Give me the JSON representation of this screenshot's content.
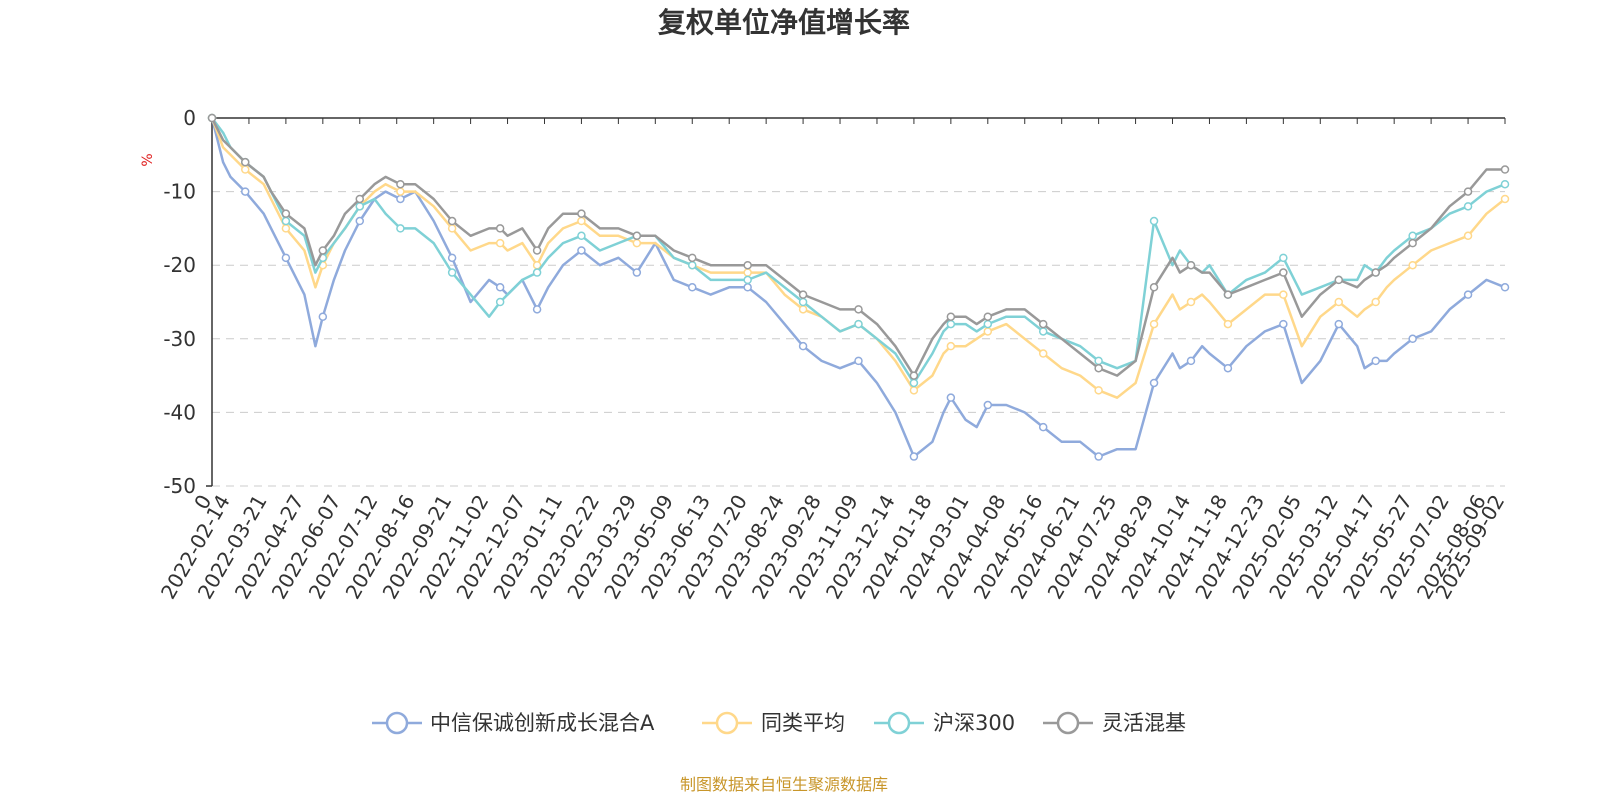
{
  "title": "复权单位净值增长率",
  "source": "制图数据来自恒生聚源数据库",
  "chart_data": {
    "type": "line",
    "title": "复权单位净值增长率",
    "ylabel": "%",
    "ylim": [
      -50,
      0
    ],
    "yticks": [
      0,
      -10,
      -20,
      -30,
      -40,
      -50
    ],
    "grid": true,
    "legend_position": "bottom",
    "x_labels": [
      "0",
      "2022-02-14",
      "2022-03-21",
      "2022-04-27",
      "2022-06-07",
      "2022-07-12",
      "2022-08-16",
      "2022-09-21",
      "2022-11-02",
      "2022-12-07",
      "2023-01-11",
      "2023-02-22",
      "2023-03-29",
      "2023-05-09",
      "2023-06-13",
      "2023-07-20",
      "2023-08-24",
      "2023-09-28",
      "2023-11-09",
      "2023-12-14",
      "2024-01-18",
      "2024-03-01",
      "2024-04-08",
      "2024-05-16",
      "2024-06-21",
      "2024-07-25",
      "2024-08-29",
      "2024-10-14",
      "2024-11-18",
      "2024-12-23",
      "2025-02-05",
      "2025-03-12",
      "2025-04-17",
      "2025-05-27",
      "2025-07-02",
      "2025-08-06",
      "2025-09-02"
    ],
    "x_positions": [
      0,
      0.5,
      1.5,
      2.5,
      3.5,
      4.5,
      5.5,
      6.5,
      7.5,
      8.5,
      9.5,
      10.5,
      11.5,
      12.5,
      13.5,
      14.5,
      15.5,
      16.5,
      17.5,
      18.5,
      19.5,
      20.5,
      21.5,
      22.5,
      23.5,
      24.5,
      25.5,
      26.5,
      27.5,
      28.5,
      29.5,
      30.5,
      31.5,
      32.5,
      33.5,
      34.5,
      35
    ],
    "x_domain": [
      0,
      35
    ],
    "series": [
      {
        "name": "中信保诚创新成长混合A",
        "color": "#8faadc",
        "x": [
          0,
          0.3,
          0.5,
          0.9,
          1.4,
          1.6,
          2.0,
          2.5,
          2.8,
          3.0,
          3.3,
          3.6,
          4.0,
          4.4,
          4.7,
          5.1,
          5.5,
          6.0,
          6.5,
          7.0,
          7.5,
          7.8,
          8.0,
          8.4,
          8.8,
          9.1,
          9.5,
          10.0,
          10.5,
          11.0,
          11.5,
          12.0,
          12.5,
          13.0,
          13.5,
          14.0,
          14.5,
          15.0,
          15.5,
          16.0,
          16.5,
          17.0,
          17.5,
          18.0,
          18.5,
          19.0,
          19.5,
          19.8,
          20.0,
          20.4,
          20.7,
          21.0,
          21.5,
          22.0,
          22.5,
          23.0,
          23.5,
          24.0,
          24.5,
          25.0,
          25.5,
          26.0,
          26.2,
          26.5,
          26.8,
          27.0,
          27.5,
          28.0,
          28.5,
          29.0,
          29.5,
          30.0,
          30.5,
          31.0,
          31.2,
          31.5,
          31.8,
          32.0,
          32.5,
          33.0,
          33.5,
          34.0,
          34.5,
          35.0
        ],
        "y": [
          0,
          -6,
          -8,
          -10,
          -13,
          -15,
          -19,
          -24,
          -31,
          -27,
          -22,
          -18,
          -14,
          -11,
          -10,
          -11,
          -10,
          -14,
          -19,
          -25,
          -22,
          -23,
          -24,
          -22,
          -26,
          -23,
          -20,
          -18,
          -20,
          -19,
          -21,
          -17,
          -22,
          -23,
          -24,
          -23,
          -23,
          -25,
          -28,
          -31,
          -33,
          -34,
          -33,
          -36,
          -40,
          -46,
          -44,
          -40,
          -38,
          -41,
          -42,
          -39,
          -39,
          -40,
          -42,
          -44,
          -44,
          -46,
          -45,
          -45,
          -36,
          -32,
          -34,
          -33,
          -31,
          -32,
          -34,
          -31,
          -29,
          -28,
          -36,
          -33,
          -28,
          -31,
          -34,
          -33,
          -33,
          -32,
          -30,
          -29,
          -26,
          -24,
          -22,
          -23
        ]
      },
      {
        "name": "同类平均",
        "color": "#ffd88a",
        "x": [
          0,
          0.3,
          0.5,
          0.9,
          1.4,
          1.6,
          2.0,
          2.5,
          2.8,
          3.0,
          3.3,
          3.6,
          4.0,
          4.4,
          4.7,
          5.1,
          5.5,
          6.0,
          6.5,
          7.0,
          7.5,
          7.8,
          8.0,
          8.4,
          8.8,
          9.1,
          9.5,
          10.0,
          10.5,
          11.0,
          11.5,
          12.0,
          12.5,
          13.0,
          13.5,
          14.0,
          14.5,
          15.0,
          15.5,
          16.0,
          16.5,
          17.0,
          17.5,
          18.0,
          18.5,
          19.0,
          19.5,
          19.8,
          20.0,
          20.4,
          20.7,
          21.0,
          21.5,
          22.0,
          22.5,
          23.0,
          23.5,
          24.0,
          24.5,
          25.0,
          25.5,
          26.0,
          26.2,
          26.5,
          26.8,
          27.0,
          27.5,
          28.0,
          28.5,
          29.0,
          29.5,
          30.0,
          30.5,
          31.0,
          31.2,
          31.5,
          31.8,
          32.0,
          32.5,
          33.0,
          33.5,
          34.0,
          34.5,
          35.0
        ],
        "y": [
          0,
          -4,
          -5,
          -7,
          -9,
          -11,
          -15,
          -18,
          -23,
          -20,
          -17,
          -15,
          -12,
          -10,
          -9,
          -10,
          -10,
          -12,
          -15,
          -18,
          -17,
          -17,
          -18,
          -17,
          -20,
          -17,
          -15,
          -14,
          -16,
          -16,
          -17,
          -17,
          -19,
          -20,
          -21,
          -21,
          -21,
          -21,
          -24,
          -26,
          -27,
          -29,
          -28,
          -30,
          -33,
          -37,
          -35,
          -32,
          -31,
          -31,
          -30,
          -29,
          -28,
          -30,
          -32,
          -34,
          -35,
          -37,
          -38,
          -36,
          -28,
          -24,
          -26,
          -25,
          -24,
          -25,
          -28,
          -26,
          -24,
          -24,
          -31,
          -27,
          -25,
          -27,
          -26,
          -25,
          -23,
          -22,
          -20,
          -18,
          -17,
          -16,
          -13,
          -11
        ]
      },
      {
        "name": "沪深300",
        "color": "#7fd1d6",
        "x": [
          0,
          0.3,
          0.5,
          0.9,
          1.4,
          1.6,
          2.0,
          2.5,
          2.8,
          3.0,
          3.3,
          3.6,
          4.0,
          4.4,
          4.7,
          5.1,
          5.5,
          6.0,
          6.5,
          7.0,
          7.5,
          7.8,
          8.0,
          8.4,
          8.8,
          9.1,
          9.5,
          10.0,
          10.5,
          11.0,
          11.5,
          12.0,
          12.5,
          13.0,
          13.5,
          14.0,
          14.5,
          15.0,
          15.5,
          16.0,
          16.5,
          17.0,
          17.5,
          18.0,
          18.5,
          19.0,
          19.5,
          19.8,
          20.0,
          20.4,
          20.7,
          21.0,
          21.5,
          22.0,
          22.5,
          23.0,
          23.5,
          24.0,
          24.5,
          25.0,
          25.5,
          26.0,
          26.2,
          26.5,
          26.8,
          27.0,
          27.5,
          28.0,
          28.5,
          29.0,
          29.5,
          30.0,
          30.5,
          31.0,
          31.2,
          31.5,
          31.8,
          32.0,
          32.5,
          33.0,
          33.5,
          34.0,
          34.5,
          35.0
        ],
        "y": [
          0,
          -2,
          -4,
          -6,
          -8,
          -10,
          -14,
          -16,
          -21,
          -19,
          -17,
          -15,
          -12,
          -11,
          -13,
          -15,
          -15,
          -17,
          -21,
          -24,
          -27,
          -25,
          -24,
          -22,
          -21,
          -19,
          -17,
          -16,
          -18,
          -17,
          -16,
          -16,
          -19,
          -20,
          -22,
          -22,
          -22,
          -21,
          -23,
          -25,
          -27,
          -29,
          -28,
          -30,
          -32,
          -36,
          -32,
          -29,
          -28,
          -28,
          -29,
          -28,
          -27,
          -27,
          -29,
          -30,
          -31,
          -33,
          -34,
          -33,
          -14,
          -20,
          -18,
          -20,
          -21,
          -20,
          -24,
          -22,
          -21,
          -19,
          -24,
          -23,
          -22,
          -22,
          -20,
          -21,
          -19,
          -18,
          -16,
          -15,
          -13,
          -12,
          -10,
          -9
        ]
      },
      {
        "name": "灵活混基",
        "color": "#999999",
        "x": [
          0,
          0.3,
          0.5,
          0.9,
          1.4,
          1.6,
          2.0,
          2.5,
          2.8,
          3.0,
          3.3,
          3.6,
          4.0,
          4.4,
          4.7,
          5.1,
          5.5,
          6.0,
          6.5,
          7.0,
          7.5,
          7.8,
          8.0,
          8.4,
          8.8,
          9.1,
          9.5,
          10.0,
          10.5,
          11.0,
          11.5,
          12.0,
          12.5,
          13.0,
          13.5,
          14.0,
          14.5,
          15.0,
          15.5,
          16.0,
          16.5,
          17.0,
          17.5,
          18.0,
          18.5,
          19.0,
          19.5,
          19.8,
          20.0,
          20.4,
          20.7,
          21.0,
          21.5,
          22.0,
          22.5,
          23.0,
          23.5,
          24.0,
          24.5,
          25.0,
          25.5,
          26.0,
          26.2,
          26.5,
          26.8,
          27.0,
          27.5,
          28.0,
          28.5,
          29.0,
          29.5,
          30.0,
          30.5,
          31.0,
          31.2,
          31.5,
          31.8,
          32.0,
          32.5,
          33.0,
          33.5,
          34.0,
          34.5,
          35.0
        ],
        "y": [
          0,
          -3,
          -4,
          -6,
          -8,
          -10,
          -13,
          -15,
          -20,
          -18,
          -16,
          -13,
          -11,
          -9,
          -8,
          -9,
          -9,
          -11,
          -14,
          -16,
          -15,
          -15,
          -16,
          -15,
          -18,
          -15,
          -13,
          -13,
          -15,
          -15,
          -16,
          -16,
          -18,
          -19,
          -20,
          -20,
          -20,
          -20,
          -22,
          -24,
          -25,
          -26,
          -26,
          -28,
          -31,
          -35,
          -30,
          -28,
          -27,
          -27,
          -28,
          -27,
          -26,
          -26,
          -28,
          -30,
          -32,
          -34,
          -35,
          -33,
          -23,
          -19,
          -21,
          -20,
          -21,
          -21,
          -24,
          -23,
          -22,
          -21,
          -27,
          -24,
          -22,
          -23,
          -22,
          -21,
          -20,
          -19,
          -17,
          -15,
          -12,
          -10,
          -7,
          -7
        ]
      }
    ]
  }
}
